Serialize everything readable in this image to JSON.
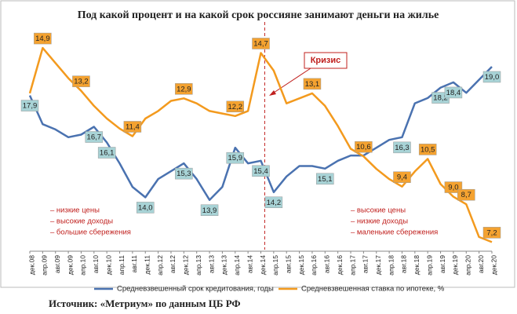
{
  "chart_data": {
    "type": "line",
    "title": "Под какой процент и на какой срок россияне занимают деньги на жилье",
    "source": "Источник: «Метриум» по данным ЦБ РФ",
    "annotation": "Кризис",
    "notes_left": [
      "– низкие цены",
      "– высокие доходы",
      "– большие сбережения"
    ],
    "notes_right": [
      "– высокие цены",
      "– низкие доходы",
      "– маленькие сбережения"
    ],
    "categories": [
      "дек.08",
      "апр.09",
      "авг.09",
      "дек.09",
      "апр.10",
      "авг.10",
      "дек.10",
      "апр.11",
      "авг.11",
      "дек.11",
      "апр.12",
      "авг.12",
      "дек.12",
      "апр.13",
      "авг.13",
      "дек.13",
      "апр.14",
      "авг.14",
      "дек.14",
      "апр.15",
      "авг.15",
      "дек.15",
      "апр.16",
      "авг.16",
      "дек.16",
      "апр.17",
      "авг.17",
      "дек.17",
      "апр.18",
      "авг.18",
      "дек.18",
      "апр.19",
      "авг.19",
      "дек.19",
      "апр.20",
      "авг.20",
      "дек.20"
    ],
    "ylim": [
      12,
      20.2
    ],
    "y2lim": [
      6.9,
      15.4
    ],
    "series": [
      {
        "name": "Средневзвешенный срок кредитования, годы",
        "color": "#4a72b0",
        "label_fill": "#a8d3d6",
        "values": [
          17.9,
          16.8,
          16.6,
          16.3,
          16.4,
          16.7,
          16.1,
          15.3,
          14.4,
          14.0,
          14.7,
          15.0,
          15.3,
          14.7,
          13.9,
          14.4,
          15.9,
          15.3,
          15.4,
          14.2,
          14.8,
          15.2,
          15.2,
          15.1,
          15.4,
          15.6,
          15.6,
          15.9,
          16.2,
          16.3,
          17.6,
          17.8,
          18.2,
          18.4,
          18.0,
          18.5,
          19.0
        ],
        "value_labels": [
          "17,9",
          null,
          null,
          null,
          null,
          "16,7",
          "16,1",
          null,
          null,
          "14,0",
          null,
          null,
          "15,3",
          null,
          "13,9",
          null,
          "15,9",
          null,
          "15,4",
          "14,2",
          null,
          null,
          null,
          "15,1",
          null,
          null,
          null,
          null,
          null,
          "16,3",
          null,
          null,
          "18,2",
          "18,4",
          null,
          null,
          "19,0"
        ]
      },
      {
        "name": "Средневзвешенная ставка по ипотеке, %",
        "color": "#f39a1e",
        "label_fill": "#f4a230",
        "axis": "y2",
        "values": [
          13.1,
          14.9,
          14.3,
          13.7,
          13.2,
          12.6,
          12.1,
          11.7,
          11.4,
          12.1,
          12.4,
          12.8,
          12.9,
          12.7,
          12.4,
          12.3,
          12.2,
          12.4,
          14.7,
          14.0,
          12.7,
          12.9,
          13.1,
          12.6,
          11.8,
          10.9,
          10.6,
          10.1,
          9.7,
          9.4,
          10.0,
          10.5,
          9.5,
          9.0,
          8.7,
          7.4,
          7.2
        ],
        "value_labels": [
          null,
          "14,9",
          null,
          null,
          "13,2",
          null,
          null,
          null,
          "11,4",
          null,
          null,
          null,
          "12,9",
          null,
          null,
          null,
          "12,2",
          null,
          "14,7",
          null,
          null,
          null,
          "13,1",
          null,
          null,
          null,
          "10,6",
          null,
          null,
          "9,4",
          null,
          "10,5",
          null,
          "9,0",
          "8,7",
          null,
          "7,2"
        ]
      }
    ]
  }
}
